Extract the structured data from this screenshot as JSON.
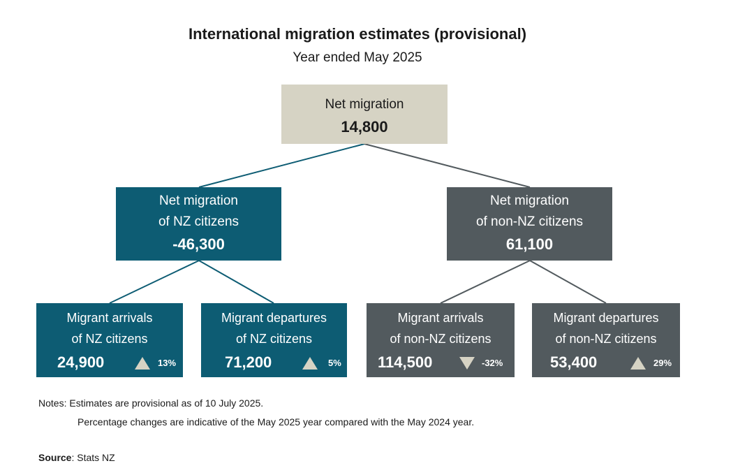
{
  "title": "International migration estimates (provisional)",
  "subtitle": "Year ended May 2025",
  "colors": {
    "teal": "#0d5c73",
    "grey": "#525a5e",
    "tan": "#d6d3c4",
    "triangle": "#d6d3c4"
  },
  "root": {
    "label": "Net migration",
    "value": "14,800"
  },
  "nz": {
    "label_line1": "Net migration",
    "label_line2": "of NZ citizens",
    "value": "-46,300"
  },
  "non_nz": {
    "label_line1": "Net migration",
    "label_line2": "of non-NZ citizens",
    "value": "61,100"
  },
  "leaves": [
    {
      "line1": "Migrant arrivals",
      "line2": "of NZ citizens",
      "value": "24,900",
      "direction": "up",
      "change": "13%"
    },
    {
      "line1": "Migrant departures",
      "line2": "of NZ citizens",
      "value": "71,200",
      "direction": "up",
      "change": "5%"
    },
    {
      "line1": "Migrant arrivals",
      "line2": "of non-NZ citizens",
      "value": "114,500",
      "direction": "down",
      "change": "-32%"
    },
    {
      "line1": "Migrant departures",
      "line2": "of non-NZ citizens",
      "value": "53,400",
      "direction": "up",
      "change": "29%"
    }
  ],
  "notes": {
    "line1": "Notes: Estimates are provisional as of 10 July 2025.",
    "line2": "Percentage changes are indicative of the May 2025 year compared with the May 2024 year."
  },
  "source": {
    "label": "Source",
    "text": ": Stats NZ"
  }
}
